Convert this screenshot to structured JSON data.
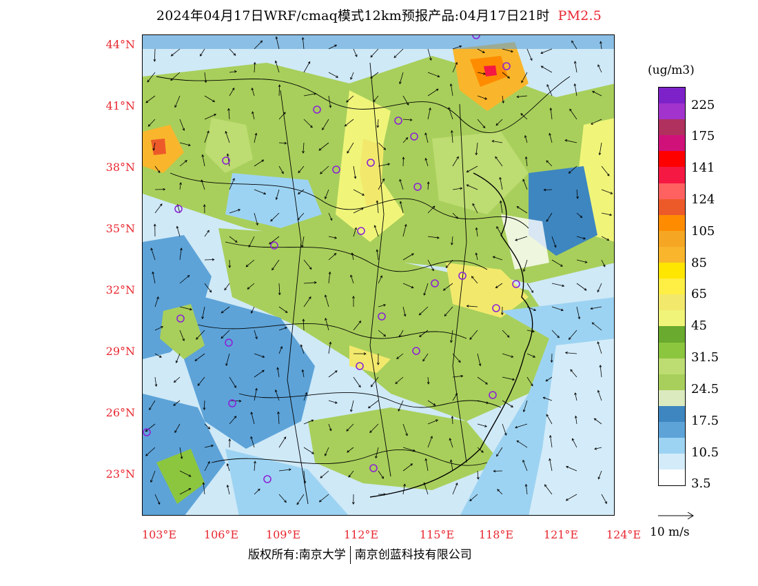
{
  "title": {
    "main": "2024年04月17日WRF/cmaq模式12km预报产品:04月17日21时",
    "product": "PM2.5"
  },
  "map": {
    "lat_labels": [
      "44°N",
      "41°N",
      "38°N",
      "35°N",
      "32°N",
      "29°N",
      "26°N",
      "23°N"
    ],
    "lon_labels": [
      "103°E",
      "106°E",
      "109°E",
      "112°E",
      "115°E",
      "118°E",
      "121°E",
      "124°E"
    ],
    "station_markers": 27,
    "border_color": "#000000",
    "marker_color": "#8b22d6"
  },
  "legend": {
    "units": "(ug/m3)",
    "colors": [
      "#7d22c9",
      "#a233cc",
      "#b0305e",
      "#d0117a",
      "#ff0000",
      "#f51843",
      "#ff6161",
      "#ed5a2a",
      "#ff8c00",
      "#f5a623",
      "#f9b62c",
      "#ffe600",
      "#ffee44",
      "#f2e96c",
      "#f0f57a",
      "#6aaa2e",
      "#8cc63f",
      "#bddc72",
      "#a8cf5b",
      "#dceabf",
      "#3e86c0",
      "#5da3d8",
      "#9dd3f2",
      "#d4ecf9",
      "#ffffff"
    ],
    "labels": [
      "225",
      "175",
      "141",
      "124",
      "105",
      "85",
      "65",
      "45",
      "31.5",
      "24.5",
      "17.5",
      "10.5",
      "3.5"
    ]
  },
  "wind_reference": "10 m/s",
  "copyright": {
    "left": "版权所有:南京大学",
    "right": "南京创蓝科技有限公司"
  }
}
